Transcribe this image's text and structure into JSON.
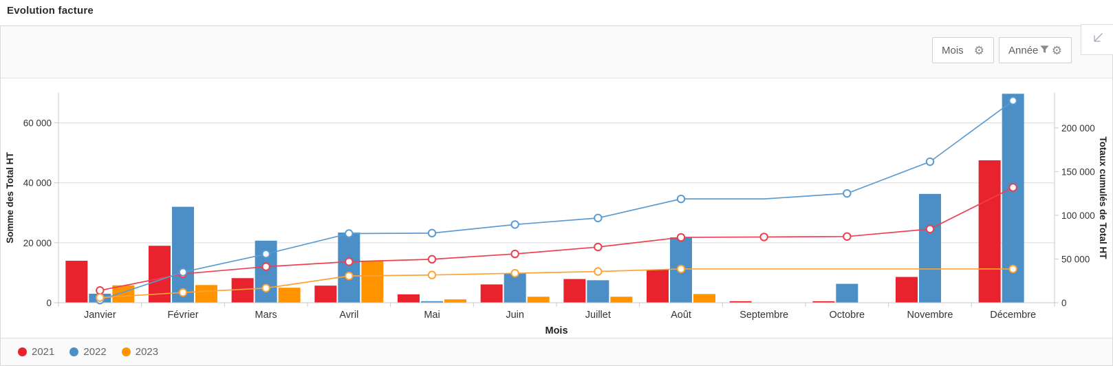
{
  "header": {
    "title": "Evolution facture"
  },
  "toolbar": {
    "month_button": "Mois",
    "year_button": "Année"
  },
  "icons": {
    "gear_glyph": "⚙",
    "month_button": "gear-icon",
    "year_button": "filter-icon + gear-icon",
    "corner_button": "collapse-arrow-icon"
  },
  "chart_data": {
    "type": "bar+line",
    "title": "Evolution facture",
    "categories": [
      "Janvier",
      "Février",
      "Mars",
      "Avril",
      "Mai",
      "Juin",
      "Juillet",
      "Août",
      "Septembre",
      "Octobre",
      "Novembre",
      "Décembre"
    ],
    "x_axis_title": "Mois",
    "left_axis": {
      "title": "Somme des Total HT",
      "ticks": [
        0,
        20000,
        40000,
        60000
      ],
      "max": 70000
    },
    "right_axis": {
      "title": "Totaux cumulés de Total HT",
      "ticks": [
        0,
        50000,
        100000,
        150000,
        200000
      ],
      "max": 240000
    },
    "grid": "horizontal-only",
    "legend_position": "bottom-left",
    "series": [
      {
        "name": "2021",
        "bar_color": "#e8232e",
        "line_color": "#ef3e4e",
        "monthly": [
          14000,
          19000,
          8200,
          5700,
          2800,
          6100,
          7900,
          11000,
          500,
          500,
          8600,
          47500
        ],
        "cumulative": [
          14000,
          33000,
          41200,
          46900,
          49700,
          55800,
          63700,
          74700,
          75200,
          75700,
          84300,
          131800
        ],
        "point_markers": [
          true,
          true,
          true,
          true,
          true,
          true,
          true,
          true,
          true,
          true,
          true,
          true
        ]
      },
      {
        "name": "2022",
        "bar_color": "#4b8fc6",
        "line_color": "#5b9bd3",
        "monthly": [
          3000,
          32000,
          20700,
          23400,
          500,
          9800,
          7500,
          21800,
          0,
          6300,
          36300,
          69700
        ],
        "cumulative": [
          3000,
          35000,
          55700,
          79100,
          79600,
          89400,
          96900,
          118700,
          118700,
          125000,
          161300,
          231000
        ],
        "point_markers": [
          true,
          true,
          true,
          true,
          true,
          true,
          true,
          true,
          false,
          true,
          true,
          true
        ]
      },
      {
        "name": "2023",
        "bar_color": "#ff9300",
        "line_color": "#ffa233",
        "monthly": [
          5800,
          5900,
          5000,
          13900,
          1100,
          2000,
          2000,
          2900,
          0,
          0,
          0,
          0
        ],
        "cumulative": [
          5800,
          11700,
          16700,
          30600,
          31700,
          33700,
          35700,
          38600,
          38600,
          38600,
          38600,
          38600
        ],
        "point_markers": [
          true,
          true,
          true,
          true,
          true,
          true,
          true,
          true,
          false,
          false,
          false,
          true
        ]
      }
    ]
  }
}
